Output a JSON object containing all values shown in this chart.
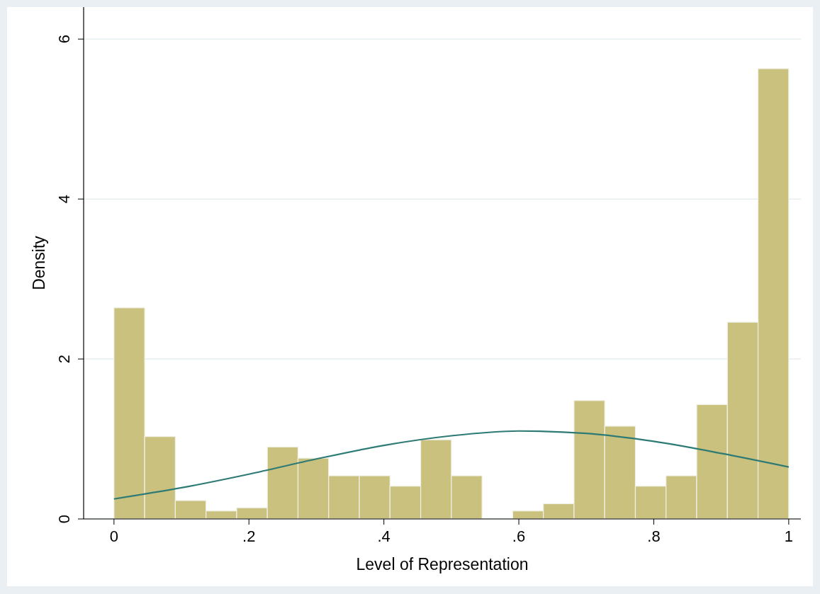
{
  "chart_data": {
    "type": "histogram",
    "xlabel": "Level of Representation",
    "ylabel": "Density",
    "bins": [
      0,
      0.04545,
      0.09091,
      0.13636,
      0.18182,
      0.22727,
      0.27273,
      0.31818,
      0.36364,
      0.40909,
      0.45455,
      0.5,
      0.54545,
      0.59091,
      0.63636,
      0.68182,
      0.72727,
      0.77273,
      0.81818,
      0.86364,
      0.90909,
      0.95455,
      1
    ],
    "values": [
      2.64,
      1.03,
      0.23,
      0.1,
      0.14,
      0.9,
      0.76,
      0.54,
      0.54,
      0.41,
      0.99,
      0.54,
      0,
      0.1,
      0.19,
      1.48,
      1.16,
      0.41,
      0.54,
      1.43,
      2.46,
      5.63
    ],
    "color": "#c9c17d",
    "series": [
      {
        "type": "line",
        "color": "#2e7a74",
        "x": [
          0,
          0.1,
          0.2,
          0.3,
          0.4,
          0.5,
          0.6,
          0.7,
          0.8,
          0.9,
          1
        ],
        "values": [
          0.25,
          0.39,
          0.56,
          0.75,
          0.92,
          1.04,
          1.1,
          1.07,
          0.97,
          0.82,
          0.65
        ]
      }
    ],
    "xlim": [
      -0.045,
      1.018
    ],
    "ylim": [
      0,
      6.4
    ],
    "xticks": [
      0,
      {
        "value": 0.2,
        "label": ".2"
      },
      {
        "value": 0.4,
        "label": ".4"
      },
      {
        "value": 0.6,
        "label": ".6"
      },
      {
        "value": 0.8,
        "label": ".8"
      },
      1
    ],
    "yticks": [
      0,
      2,
      4,
      6
    ],
    "grid": "y"
  }
}
